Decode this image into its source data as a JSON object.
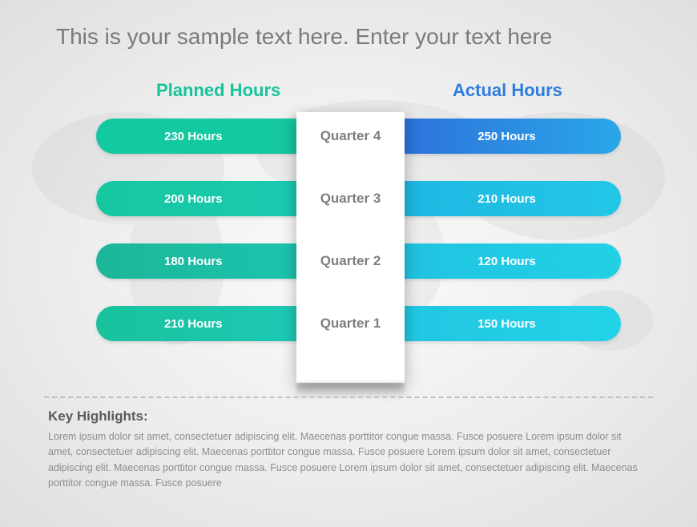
{
  "title": "This is your sample text here. Enter your text here",
  "headers": {
    "planned": {
      "text": "Planned Hours",
      "color": "#17c49a"
    },
    "actual": {
      "text": "Actual Hours",
      "color": "#2f7de0"
    }
  },
  "center_column": {
    "background": "#ffffff",
    "label_color": "#7e7e7e",
    "label_fontsize": 17
  },
  "rows": [
    {
      "quarter": "Quarter 4",
      "planned": "230 Hours",
      "actual": "250 Hours",
      "planned_gradient": [
        "#14c8a0",
        "#14c8a0"
      ],
      "actual_gradient": [
        "#2d69d9",
        "#2aa6e8"
      ]
    },
    {
      "quarter": "Quarter 3",
      "planned": "200 Hours",
      "actual": "210 Hours",
      "planned_gradient": [
        "#15c8a0",
        "#1acab4"
      ],
      "actual_gradient": [
        "#1fb4e2",
        "#22c7e6"
      ]
    },
    {
      "quarter": "Quarter 2",
      "planned": "180 Hours",
      "actual": "120 Hours",
      "planned_gradient": [
        "#1cb698",
        "#1dc8b5"
      ],
      "actual_gradient": [
        "#1fc0e1",
        "#22d1e6"
      ]
    },
    {
      "quarter": "Quarter 1",
      "planned": "210 Hours",
      "actual": "150 Hours",
      "planned_gradient": [
        "#19c29c",
        "#1ecbbb"
      ],
      "actual_gradient": [
        "#20c4e2",
        "#24d3e7"
      ]
    }
  ],
  "rows_layout": {
    "first_top": 0,
    "gap": 78,
    "pill_height": 44
  },
  "pill_text": {
    "color": "#ffffff",
    "fontsize": 15,
    "fontweight": 700
  },
  "highlights": {
    "title": "Key Highlights:",
    "body": "Lorem ipsum dolor sit amet, consectetuer adipiscing elit.  Maecenas porttitor congue massa. Fusce posuere Lorem ipsum dolor sit amet, consectetuer adipiscing elit.  Maecenas porttitor congue massa. Fusce posuere Lorem ipsum dolor sit amet, consectetuer adipiscing elit.  Maecenas porttitor congue massa. Fusce posuere Lorem ipsum dolor sit amet, consectetuer adipiscing elit.  Maecenas porttitor congue massa. Fusce posuere",
    "title_color": "#5a5a5a",
    "body_color": "#8d8d8d"
  },
  "divider_color": "#c1c1c1",
  "map_blob_color": "#9b9b9b"
}
